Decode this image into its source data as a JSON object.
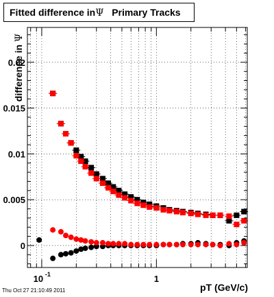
{
  "title": {
    "part1": "Fitted difference in",
    "symbol": "Ψ",
    "part2": "Primary Tracks"
  },
  "ylabel": {
    "prefix": "difference in ",
    "symbol": "Ψ"
  },
  "xlabel": "pT (GeV/c)",
  "datestamp": "Thu Oct 27 21:10:49 2011",
  "chart_data": {
    "type": "scatter",
    "xscale": "log",
    "xlim": [
      0.075,
      6.2
    ],
    "ylim": [
      -0.0024,
      0.0238
    ],
    "grid": true,
    "xtick_labels": [
      {
        "value": 0.1,
        "label": "10",
        "sup": "-1"
      },
      {
        "value": 1,
        "label": "1"
      }
    ],
    "ytick_labels": [
      {
        "value": 0,
        "label": "0"
      },
      {
        "value": 0.005,
        "label": "0.005"
      },
      {
        "value": 0.01,
        "label": "0.01"
      },
      {
        "value": 0.015,
        "label": "0.015"
      },
      {
        "value": 0.02,
        "label": "0.02"
      }
    ],
    "series": [
      {
        "marker": "square",
        "color": "#000000",
        "x": [
          0.125,
          0.147,
          0.162,
          0.18,
          0.2,
          0.22,
          0.24,
          0.27,
          0.3,
          0.34,
          0.38,
          0.42,
          0.47,
          0.53,
          0.6,
          0.68,
          0.77,
          0.87,
          1.0,
          1.15,
          1.3,
          1.5,
          1.7,
          2.0,
          2.3,
          2.7,
          3.1,
          3.6,
          4.3,
          5.0,
          5.8
        ],
        "y": [
          0.0166,
          0.0133,
          0.0122,
          0.0112,
          0.0104,
          0.0097,
          0.0092,
          0.0085,
          0.0078,
          0.0073,
          0.0068,
          0.0064,
          0.006,
          0.0056,
          0.0053,
          0.005,
          0.0047,
          0.0045,
          0.0043,
          0.0041,
          0.0039,
          0.0038,
          0.0037,
          0.0036,
          0.0035,
          0.0034,
          0.0033,
          0.0033,
          0.0027,
          0.0033,
          0.0037
        ]
      },
      {
        "marker": "circle",
        "color": "#000000",
        "x": [
          0.095,
          0.125,
          0.147,
          0.162,
          0.18,
          0.2,
          0.22,
          0.24,
          0.27,
          0.3,
          0.34,
          0.38,
          0.42,
          0.47,
          0.53,
          0.6,
          0.68,
          0.77,
          0.87,
          1.0,
          1.15,
          1.3,
          1.5,
          1.7,
          2.0,
          2.3,
          2.7,
          3.1,
          3.6,
          4.3,
          5.0,
          5.8
        ],
        "y": [
          0.0006,
          -0.0014,
          -0.001,
          -0.0009,
          -0.0008,
          -0.0006,
          -0.0004,
          -0.0003,
          -0.0002,
          -0.0001,
          -0.0001,
          0.0,
          0.0,
          0.0,
          0.0,
          0.0,
          0.0,
          0.0,
          0.0,
          0.0,
          0.0001,
          0.0001,
          0.0001,
          0.0002,
          0.0002,
          0.0003,
          0.0002,
          0.0001,
          0.0001,
          0.0,
          0.0003,
          0.0005
        ]
      },
      {
        "marker": "square",
        "color": "#ff0000",
        "x": [
          0.125,
          0.147,
          0.162,
          0.18,
          0.2,
          0.22,
          0.24,
          0.27,
          0.3,
          0.34,
          0.38,
          0.42,
          0.47,
          0.53,
          0.6,
          0.68,
          0.77,
          0.87,
          1.0,
          1.15,
          1.3,
          1.5,
          1.7,
          2.0,
          2.3,
          2.7,
          3.1,
          3.6,
          4.3,
          5.0,
          5.8
        ],
        "y": [
          0.0166,
          0.0133,
          0.0122,
          0.0112,
          0.0098,
          0.0092,
          0.0086,
          0.0079,
          0.0073,
          0.0068,
          0.0063,
          0.0059,
          0.0055,
          0.0052,
          0.0049,
          0.0046,
          0.0044,
          0.0042,
          0.0041,
          0.0039,
          0.0038,
          0.0037,
          0.0036,
          0.0035,
          0.0034,
          0.0033,
          0.0033,
          0.0033,
          0.0032,
          0.0023,
          0.0027
        ]
      },
      {
        "marker": "circle",
        "color": "#ff0000",
        "x": [
          0.125,
          0.147,
          0.162,
          0.18,
          0.2,
          0.22,
          0.24,
          0.27,
          0.3,
          0.34,
          0.38,
          0.42,
          0.47,
          0.53,
          0.6,
          0.68,
          0.77,
          0.87,
          1.0,
          1.15,
          1.3,
          1.5,
          1.7,
          2.0,
          2.3,
          2.7,
          3.1,
          3.6,
          4.3,
          5.0,
          5.8
        ],
        "y": [
          0.0017,
          0.0015,
          0.0011,
          0.0009,
          0.0007,
          0.0006,
          0.0005,
          0.0004,
          0.0003,
          0.0003,
          0.0002,
          0.0002,
          0.0002,
          0.0002,
          0.0001,
          0.0001,
          0.0001,
          0.0001,
          0.0001,
          0.0001,
          0.0001,
          0.0001,
          0.0001,
          0.0001,
          0.0001,
          0.0001,
          0.0001,
          0.0,
          0.0002,
          0.0001,
          0.0003
        ]
      }
    ]
  }
}
